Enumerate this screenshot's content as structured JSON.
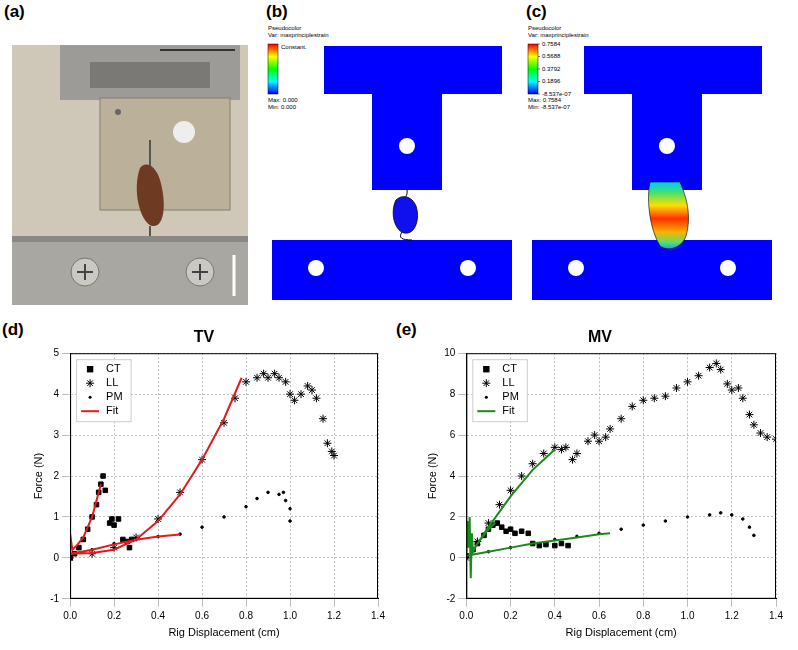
{
  "panel_labels": [
    "(a)",
    "(b)",
    "(c)",
    "(d)",
    "(e)"
  ],
  "diagrams": [
    {
      "colorbar": {
        "title": [
          "Pseudocolor",
          "Var: maxprinciplestrain"
        ],
        "subtitle": "Constant.",
        "max_label": "Max: 0.000",
        "min_label": "Min: 0.000"
      }
    },
    {
      "colorbar": {
        "title": [
          "Pseudocolor",
          "Var: maxprinciplestrain"
        ],
        "range": [
          -8.537e-07,
          0.7584
        ],
        "ticks": [
          0.7584,
          0.5688,
          0.3792,
          0.1896,
          {
            "value": -8.537e-07,
            "label": "-8.537e-07"
          }
        ],
        "max_label": "Max: 0.7584",
        "min_label": "Min: -8.537e-07"
      }
    }
  ],
  "chart_data": [
    {
      "type": "scatter",
      "title": "TV",
      "xlabel": "Rig Displacement (cm)",
      "ylabel": "Force (N)",
      "xlim": [
        0,
        1.4
      ],
      "ylim": [
        -1,
        5
      ],
      "xticks": [
        {
          "value": 0,
          "label": "0.0"
        },
        0.2,
        0.4,
        0.6,
        0.8,
        {
          "value": 1,
          "label": "1.0"
        },
        1.2,
        1.4
      ],
      "yticks": [
        -1,
        0,
        1,
        2,
        3,
        4,
        5
      ],
      "grid": true,
      "legend": "upper left",
      "series": [
        {
          "name": "CT",
          "color": "#000000",
          "marker": "square",
          "line_style": "none",
          "x": [
            0,
            0.02,
            0.04,
            0.06,
            0.08,
            0.1,
            0.12,
            0.13,
            0.14,
            0.15,
            0.16,
            0.18,
            0.19,
            0.2,
            0.22,
            0.24,
            0.26,
            0.27,
            0.28
          ],
          "values": [
            0,
            0.1,
            0.25,
            0.45,
            0.7,
            1.0,
            1.3,
            1.6,
            1.8,
            2.0,
            1.65,
            0.85,
            0.95,
            0.8,
            0.95,
            0.45,
            0.4,
            0.25,
            0.45
          ]
        },
        {
          "name": "LL",
          "color": "#000000",
          "marker": "star",
          "line_style": "none",
          "x": [
            0,
            0.1,
            0.2,
            0.3,
            0.4,
            0.5,
            0.6,
            0.7,
            0.75,
            0.8,
            0.85,
            0.88,
            0.9,
            0.93,
            0.95,
            0.98,
            1.0,
            1.02,
            1.05,
            1.08,
            1.1,
            1.12,
            1.15,
            1.17,
            1.19,
            1.2
          ],
          "values": [
            0,
            0.1,
            0.25,
            0.5,
            0.95,
            1.6,
            2.4,
            3.3,
            3.9,
            4.3,
            4.4,
            4.5,
            4.4,
            4.5,
            4.4,
            4.3,
            4.0,
            3.85,
            4.0,
            4.2,
            4.1,
            3.9,
            3.4,
            2.8,
            2.6,
            2.5
          ]
        },
        {
          "name": "PM",
          "color": "#000000",
          "marker": "point",
          "line_style": "none",
          "x": [
            0,
            0.1,
            0.2,
            0.3,
            0.4,
            0.5,
            0.6,
            0.7,
            0.8,
            0.85,
            0.9,
            0.95,
            0.97,
            0.98,
            1.0,
            1.0
          ],
          "values": [
            0.05,
            0.2,
            0.35,
            0.45,
            0.52,
            0.58,
            0.75,
            1.0,
            1.25,
            1.45,
            1.6,
            1.55,
            1.6,
            1.4,
            1.2,
            0.9
          ]
        },
        {
          "name": "Fit",
          "color": "#e41a1c",
          "marker": "none",
          "line_style": "solid",
          "x": [
            0,
            0.01,
            0.03,
            0.06,
            0.1,
            0.14,
            null,
            0,
            0.1,
            0.2,
            0.3,
            0.4,
            0.5,
            0.6,
            0.7,
            0.78,
            null,
            0,
            0.1,
            0.2,
            0.3,
            0.4,
            0.5
          ],
          "values": [
            0.6,
            0.2,
            0.3,
            0.5,
            1.0,
            1.8,
            null,
            0.1,
            0.12,
            0.2,
            0.45,
            0.9,
            1.55,
            2.4,
            3.4,
            4.4,
            null,
            0.1,
            0.2,
            0.33,
            0.44,
            0.52,
            0.57
          ]
        }
      ]
    },
    {
      "type": "scatter",
      "title": "MV",
      "xlabel": "Rig Displacement (cm)",
      "ylabel": "Force (N)",
      "xlim": [
        0,
        1.4
      ],
      "ylim": [
        -2,
        10
      ],
      "xticks": [
        {
          "value": 0,
          "label": "0.0"
        },
        0.2,
        0.4,
        0.6,
        0.8,
        {
          "value": 1,
          "label": "1.0"
        },
        1.2,
        1.4
      ],
      "yticks": [
        -2,
        0,
        2,
        4,
        6,
        8,
        10
      ],
      "grid": true,
      "legend": "upper left",
      "series": [
        {
          "name": "CT",
          "color": "#000000",
          "marker": "square",
          "line_style": "none",
          "x": [
            0,
            0.03,
            0.05,
            0.08,
            0.1,
            0.12,
            0.14,
            0.16,
            0.18,
            0.2,
            0.22,
            0.25,
            0.28,
            0.3,
            0.33,
            0.36,
            0.4,
            0.43,
            0.46
          ],
          "values": [
            0.1,
            0.4,
            0.7,
            1.1,
            1.4,
            1.6,
            1.7,
            1.5,
            1.3,
            1.4,
            1.2,
            1.3,
            1.2,
            0.7,
            0.6,
            0.65,
            0.6,
            0.7,
            0.6
          ]
        },
        {
          "name": "LL",
          "color": "#000000",
          "marker": "star",
          "line_style": "none",
          "x": [
            0,
            0.05,
            0.1,
            0.15,
            0.2,
            0.25,
            0.3,
            0.35,
            0.4,
            0.43,
            0.45,
            0.48,
            0.5,
            0.55,
            0.58,
            0.6,
            0.63,
            0.65,
            0.7,
            0.75,
            0.8,
            0.85,
            0.9,
            0.95,
            1.0,
            1.05,
            1.1,
            1.13,
            1.15,
            1.18,
            1.2,
            1.23,
            1.25,
            1.28,
            1.3,
            1.33,
            1.36,
            1.4
          ],
          "values": [
            0,
            0.8,
            1.7,
            2.6,
            3.3,
            4.0,
            4.6,
            5.1,
            5.4,
            5.3,
            5.4,
            4.8,
            5.1,
            5.7,
            6.0,
            5.7,
            5.9,
            6.3,
            6.8,
            7.4,
            7.7,
            7.8,
            7.9,
            8.3,
            8.6,
            8.9,
            9.3,
            9.5,
            9.2,
            8.5,
            8.2,
            8.3,
            7.8,
            7.0,
            6.5,
            6.1,
            5.9,
            5.8
          ]
        },
        {
          "name": "PM",
          "color": "#000000",
          "marker": "point",
          "line_style": "none",
          "x": [
            0,
            0.1,
            0.2,
            0.3,
            0.4,
            0.5,
            0.6,
            0.7,
            0.8,
            0.9,
            1.0,
            1.1,
            1.15,
            1.2,
            1.25,
            1.28,
            1.3
          ],
          "values": [
            0,
            0.3,
            0.5,
            0.7,
            0.9,
            1.05,
            1.2,
            1.4,
            1.6,
            1.8,
            2.0,
            2.1,
            2.2,
            2.1,
            1.9,
            1.5,
            1.1
          ]
        },
        {
          "name": "Fit",
          "color": "#1a8a1a",
          "marker": "none",
          "line_style": "solid",
          "x": [
            0,
            0.005,
            0.01,
            0.015,
            0.02,
            0.025,
            0.03,
            0.05,
            0.1,
            0.13,
            null,
            0.02,
            0.1,
            0.2,
            0.3,
            0.4,
            null,
            0,
            0.1,
            0.2,
            0.3,
            0.4,
            0.5,
            0.6,
            0.65
          ],
          "values": [
            0.2,
            1.8,
            0.5,
            2.0,
            -1.0,
            1.2,
            0.3,
            0.7,
            1.4,
            1.7,
            null,
            0.2,
            1.5,
            3.0,
            4.3,
            5.3,
            null,
            0.1,
            0.3,
            0.5,
            0.7,
            0.85,
            1.0,
            1.15,
            1.2
          ]
        }
      ]
    }
  ]
}
